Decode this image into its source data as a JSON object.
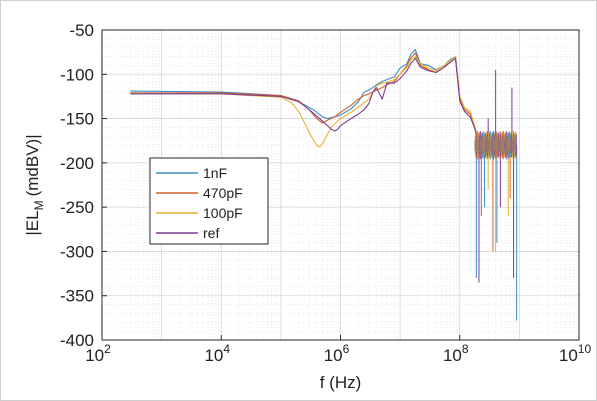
{
  "chart_data": {
    "type": "line",
    "xlabel": "f (Hz)",
    "ylabel_main": "|EL",
    "ylabel_sub": "M",
    "ylabel_tail": "(mdBV)|",
    "xscale": "log",
    "xlim": [
      100,
      10000000000
    ],
    "ylim": [
      -400,
      -50
    ],
    "x_tick_bases": [
      "10",
      "10",
      "10",
      "10",
      "10"
    ],
    "x_tick_exps": [
      "2",
      "4",
      "6",
      "8",
      "10"
    ],
    "y_ticks": [
      "-50",
      "-100",
      "-150",
      "-200",
      "-250",
      "-300",
      "-350",
      "-400"
    ],
    "grid": true,
    "legend_position": "left",
    "series": [
      {
        "name": "1nF",
        "color": "#3a8fc6",
        "x": [
          300,
          10000,
          100000,
          200000,
          350000,
          500000,
          600000,
          800000,
          1000000,
          1500000,
          2000000,
          2500000,
          3000000,
          4000000,
          5000000,
          6000000,
          8000000,
          10000000,
          13000000,
          15000000,
          18000000,
          22000000,
          30000000,
          40000000,
          55000000,
          70000000,
          85000000,
          100000000,
          120000000,
          150000000,
          180000000,
          200000000,
          300000000,
          500000000,
          700000000,
          900000000
        ],
        "y": [
          -119,
          -120,
          -124,
          -131,
          -140,
          -148,
          -150,
          -148,
          -146,
          -139,
          -131,
          -120,
          -118,
          -112,
          -108,
          -106,
          -103,
          -93,
          -88,
          -78,
          -72,
          -88,
          -90,
          -95,
          -90,
          -83,
          -80,
          -125,
          -138,
          -142,
          -160,
          -172,
          -178,
          -180,
          -181,
          -182
        ]
      },
      {
        "name": "470pF",
        "color": "#d1622b",
        "x": [
          300,
          10000,
          100000,
          200000,
          300000,
          400000,
          500000,
          600000,
          800000,
          1000000,
          1500000,
          2000000,
          2500000,
          3000000,
          4000000,
          5000000,
          6000000,
          8000000,
          10000000,
          13000000,
          15000000,
          18000000,
          22000000,
          30000000,
          40000000,
          55000000,
          70000000,
          85000000,
          100000000,
          120000000,
          150000000,
          180000000,
          200000000,
          300000000,
          500000000,
          700000000,
          900000000
        ],
        "y": [
          -121,
          -121,
          -124,
          -130,
          -140,
          -150,
          -155,
          -152,
          -148,
          -143,
          -135,
          -128,
          -124,
          -122,
          -118,
          -115,
          -112,
          -108,
          -100,
          -90,
          -82,
          -76,
          -90,
          -95,
          -98,
          -92,
          -86,
          -82,
          -128,
          -140,
          -145,
          -162,
          -174,
          -178,
          -180,
          -180,
          -181
        ]
      },
      {
        "name": "100pF",
        "color": "#e9b12f",
        "x": [
          300,
          10000,
          100000,
          150000,
          200000,
          250000,
          300000,
          350000,
          400000,
          450000,
          500000,
          600000,
          700000,
          800000,
          1000000,
          1500000,
          2000000,
          2500000,
          3000000,
          3500000,
          4000000,
          5000000,
          6000000,
          8000000,
          10000000,
          13000000,
          15000000,
          18000000,
          22000000,
          30000000,
          40000000,
          55000000,
          70000000,
          85000000,
          100000000,
          120000000,
          150000000,
          180000000,
          200000000,
          300000000,
          500000000,
          700000000,
          900000000
        ],
        "y": [
          -122,
          -122,
          -126,
          -132,
          -142,
          -155,
          -166,
          -174,
          -180,
          -182,
          -178,
          -168,
          -160,
          -156,
          -150,
          -143,
          -137,
          -132,
          -128,
          -120,
          -113,
          -110,
          -109,
          -106,
          -100,
          -92,
          -84,
          -80,
          -88,
          -93,
          -96,
          -90,
          -84,
          -80,
          -125,
          -138,
          -142,
          -160,
          -172,
          -178,
          -180,
          -181,
          -181
        ]
      },
      {
        "name": "ref",
        "color": "#7a3b96",
        "x": [
          300,
          10000,
          100000,
          200000,
          300000,
          500000,
          700000,
          800000,
          900000,
          1000000,
          1500000,
          2000000,
          2500000,
          3000000,
          3500000,
          4000000,
          5000000,
          6000000,
          8000000,
          10000000,
          13000000,
          15000000,
          18000000,
          22000000,
          30000000,
          40000000,
          55000000,
          70000000,
          85000000,
          100000000,
          120000000,
          150000000,
          180000000,
          200000000,
          300000000,
          500000000,
          700000000,
          900000000
        ],
        "y": [
          -122,
          -122,
          -125,
          -131,
          -140,
          -153,
          -162,
          -164,
          -162,
          -158,
          -150,
          -145,
          -140,
          -133,
          -120,
          -115,
          -128,
          -110,
          -110,
          -105,
          -96,
          -88,
          -82,
          -92,
          -96,
          -98,
          -92,
          -86,
          -82,
          -130,
          -142,
          -148,
          -162,
          -174,
          -178,
          -180,
          -181,
          -180
        ]
      }
    ]
  }
}
